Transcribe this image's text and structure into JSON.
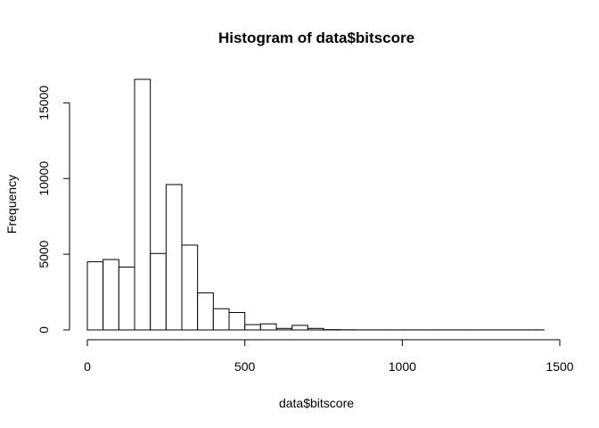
{
  "chart_data": {
    "type": "bar",
    "title": "Histogram of data$bitscore",
    "xlabel": "data$bitscore",
    "ylabel": "Frequency",
    "bin_width": 50,
    "bins_start": [
      0,
      50,
      100,
      150,
      200,
      250,
      300,
      350,
      400,
      450,
      500,
      550,
      600,
      650,
      700,
      750,
      800,
      850,
      900,
      950,
      1000,
      1050,
      1100,
      1150,
      1200,
      1250,
      1300,
      1350,
      1400
    ],
    "values": [
      4500,
      4650,
      4150,
      16550,
      5050,
      9600,
      5600,
      2450,
      1400,
      1150,
      350,
      400,
      100,
      300,
      100,
      20,
      10,
      5,
      5,
      5,
      5,
      5,
      5,
      5,
      5,
      5,
      5,
      5,
      5
    ],
    "xlim": [
      0,
      1450
    ],
    "ylim": [
      0,
      16550
    ],
    "x_ticks": [
      0,
      500,
      1000,
      1500
    ],
    "x_tick_labels": [
      "0",
      "500",
      "1000",
      "1500"
    ],
    "y_ticks": [
      0,
      5000,
      10000,
      15000
    ],
    "y_tick_labels": [
      "0",
      "5000",
      "10000",
      "15000"
    ],
    "grid": false,
    "legend": "none"
  }
}
